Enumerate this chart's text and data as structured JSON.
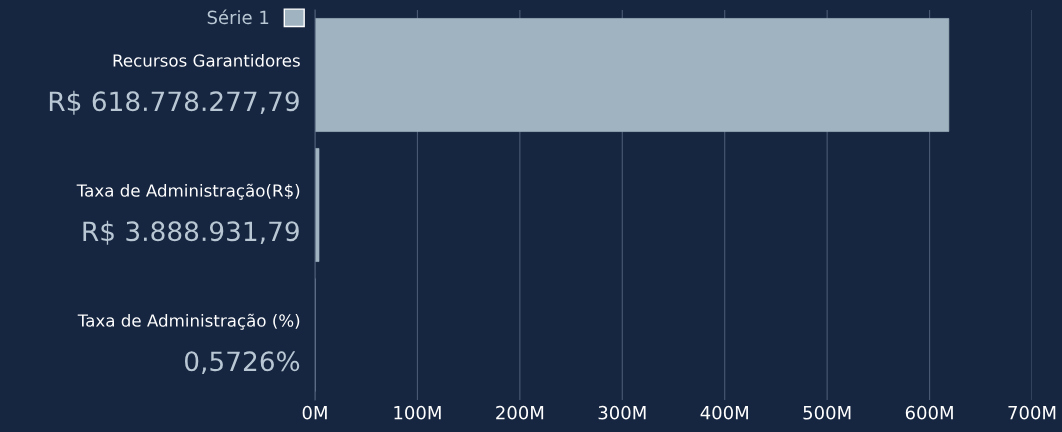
{
  "chart_data": {
    "type": "bar",
    "orientation": "horizontal",
    "categories": [
      "Recursos Garantidores",
      "Taxa de Administração(R$)",
      "Taxa de Administração (%)"
    ],
    "series": [
      {
        "name": "Série 1",
        "color": "#9fb3c1",
        "values": [
          618778277.79,
          3888931.79,
          0.5726
        ],
        "value_labels": [
          "R$ 618.778.277,79",
          "R$ 3.888.931,79",
          "0,5726%"
        ]
      }
    ],
    "xlim": [
      0,
      700000000
    ],
    "xticks": [
      {
        "value": 0,
        "label": "0M"
      },
      {
        "value": 100000000,
        "label": "100M"
      },
      {
        "value": 200000000,
        "label": "200M"
      },
      {
        "value": 300000000,
        "label": "300M"
      },
      {
        "value": 400000000,
        "label": "400M"
      },
      {
        "value": 500000000,
        "label": "500M"
      },
      {
        "value": 600000000,
        "label": "600M"
      },
      {
        "value": 700000000,
        "label": "700M"
      }
    ],
    "grid": "x",
    "legend": "top left"
  }
}
